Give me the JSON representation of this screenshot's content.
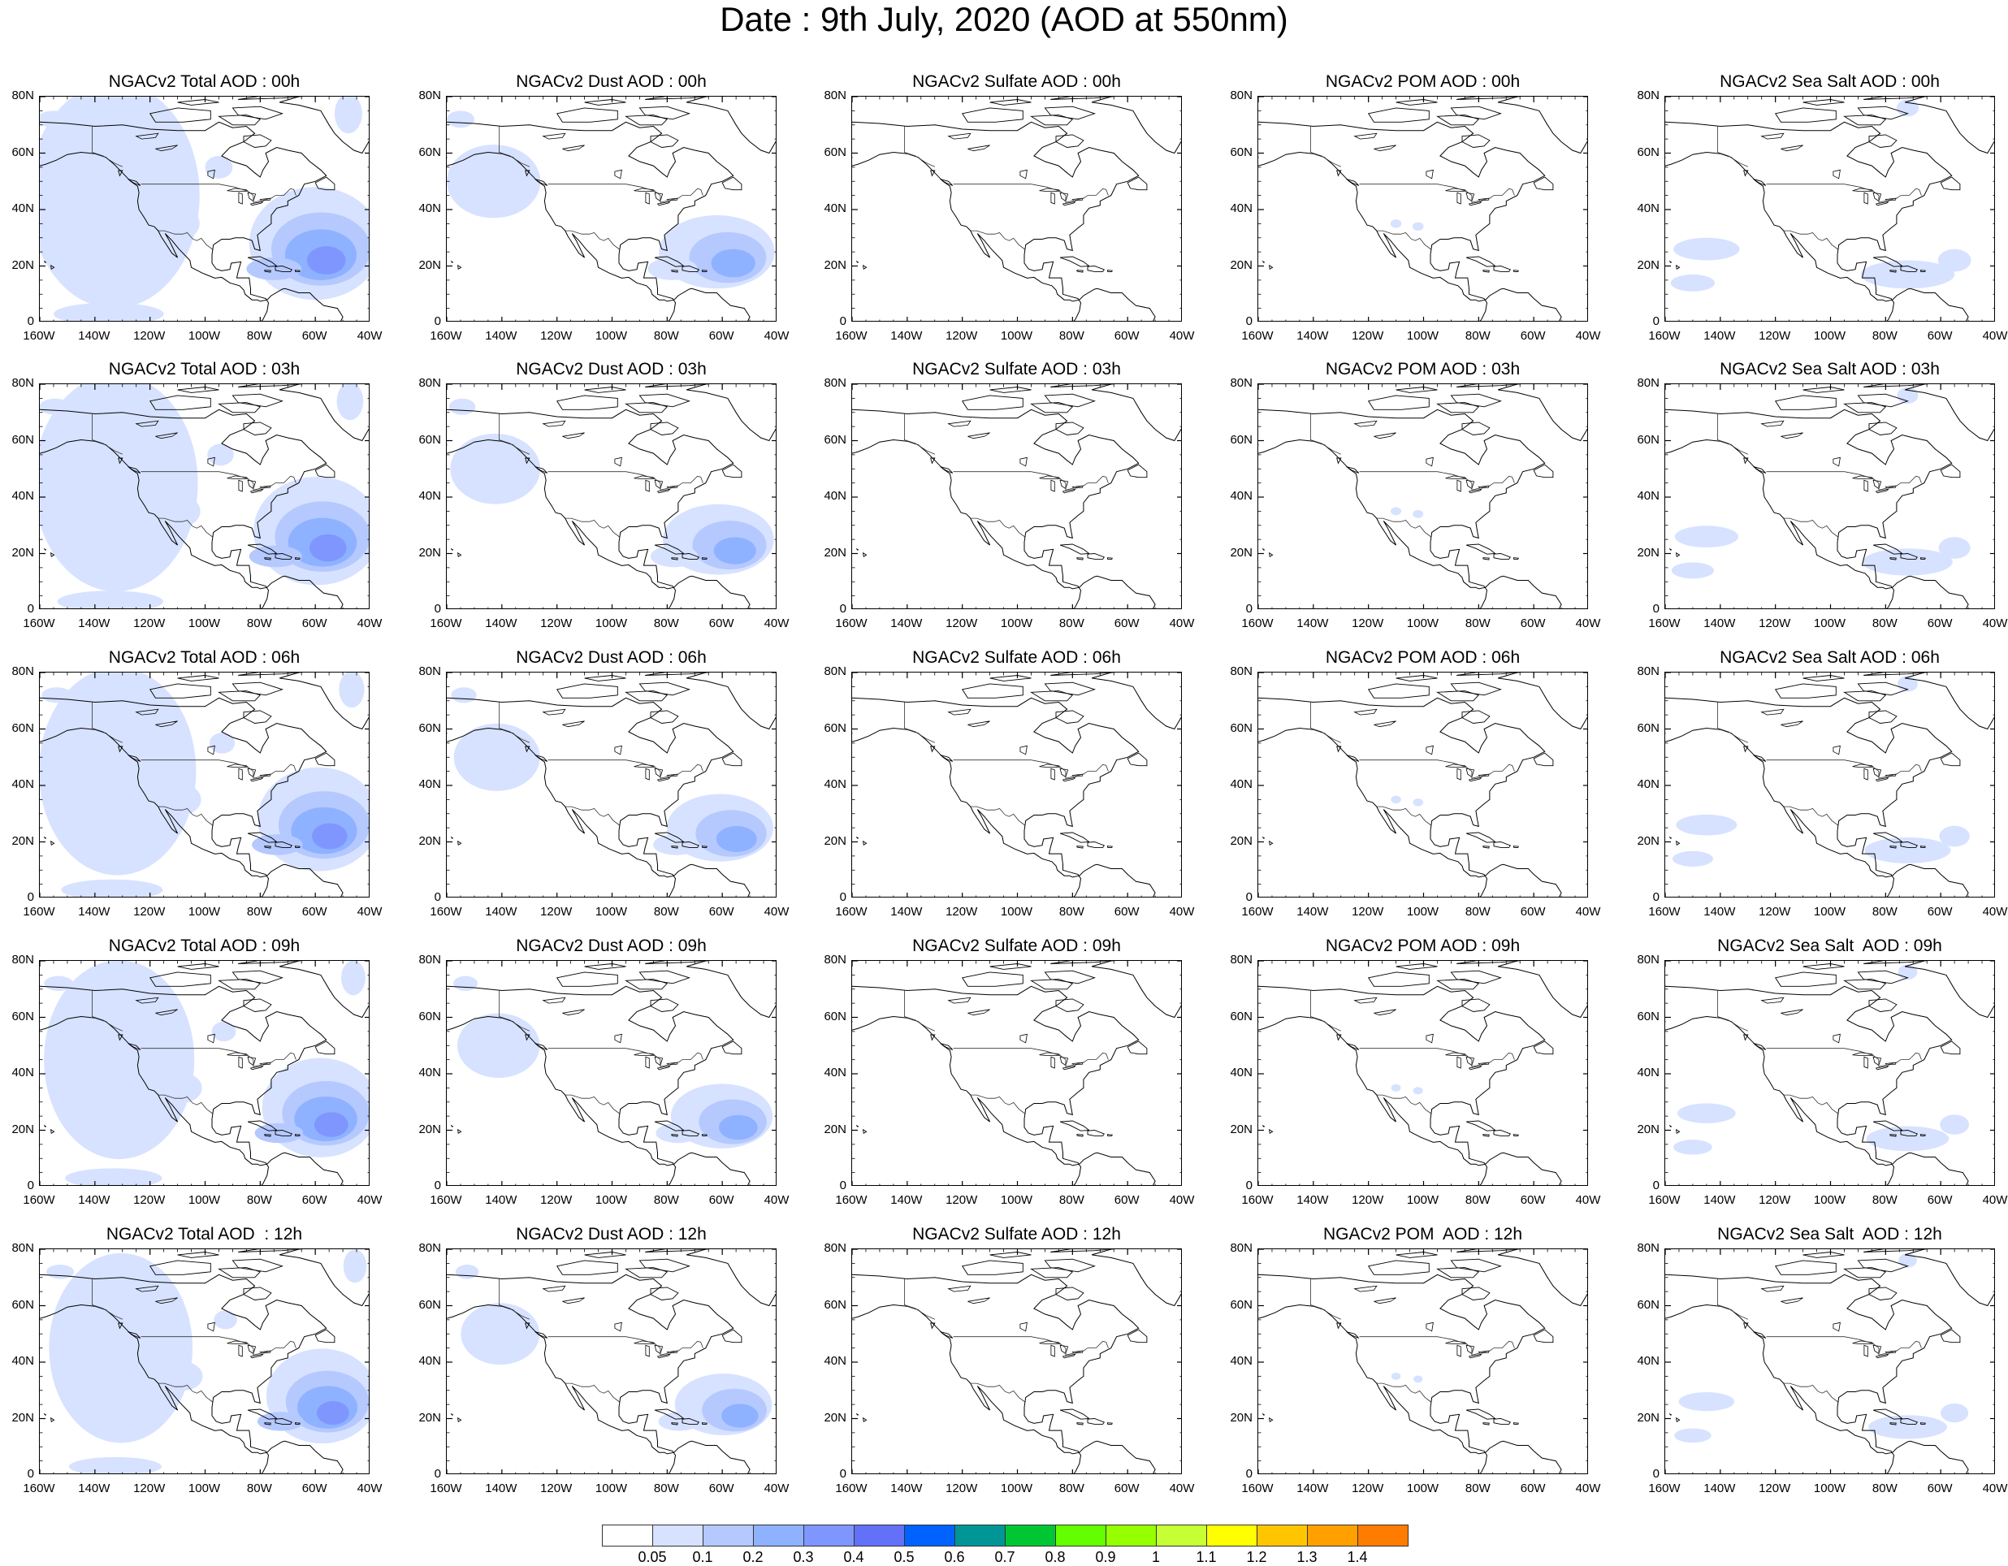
{
  "title": "Date : 9th July, 2020 (AOD at 550nm)",
  "lat_ticks": [
    "80N",
    "60N",
    "40N",
    "20N",
    "0"
  ],
  "lon_ticks": [
    "160W",
    "140W",
    "120W",
    "100W",
    "80W",
    "60W",
    "40W"
  ],
  "rows": [
    [
      "NGACv2 Total AOD : 00h",
      "NGACv2 Dust AOD : 00h",
      "NGACv2 Sulfate AOD : 00h",
      "NGACv2 POM AOD : 00h",
      "NGACv2 Sea Salt AOD : 00h"
    ],
    [
      "NGACv2 Total AOD : 03h",
      "NGACv2 Dust AOD : 03h",
      "NGACv2 Sulfate AOD : 03h",
      "NGACv2 POM AOD : 03h",
      "NGACv2 Sea Salt AOD : 03h"
    ],
    [
      "NGACv2 Total AOD : 06h",
      "NGACv2 Dust AOD : 06h",
      "NGACv2 Sulfate AOD : 06h",
      "NGACv2 POM AOD : 06h",
      "NGACv2 Sea Salt AOD : 06h"
    ],
    [
      "NGACv2 Total AOD : 09h",
      "NGACv2 Dust AOD : 09h",
      "NGACv2 Sulfate AOD : 09h",
      "NGACv2 POM AOD : 09h",
      "NGACv2 Sea Salt  AOD : 09h"
    ],
    [
      "NGACv2 Total AOD  : 12h",
      "NGACv2 Dust AOD : 12h",
      "NGACv2 Sulfate AOD : 12h",
      "NGACv2 POM  AOD : 12h",
      "NGACv2 Sea Salt  AOD : 12h"
    ]
  ],
  "colorbar": {
    "colors": [
      "#ffffff",
      "#d6e2ff",
      "#b5c9ff",
      "#8eb2ff",
      "#7f96ff",
      "#6370f8",
      "#0063ff",
      "#009696",
      "#00c633",
      "#63ff00",
      "#96ff00",
      "#c6ff33",
      "#ffff00",
      "#ffc600",
      "#ffa000",
      "#ff7c00",
      "#ff1900"
    ],
    "labels": [
      "0.05",
      "0.1",
      "0.2",
      "0.3",
      "0.4",
      "0.5",
      "0.6",
      "0.7",
      "0.8",
      "0.9",
      "1",
      "1.1",
      "1.2",
      "1.3",
      "1.4"
    ]
  }
}
